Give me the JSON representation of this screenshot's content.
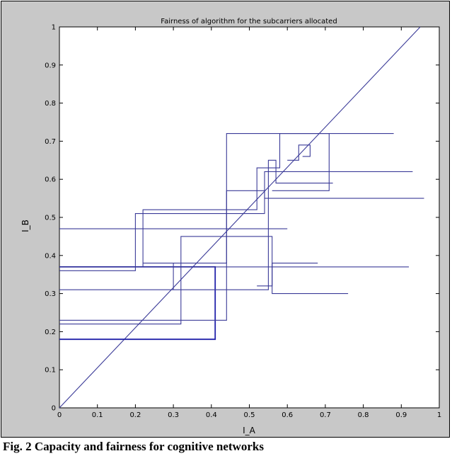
{
  "caption": "Fig. 2 Capacity and fairness for cognitive networks",
  "colors": {
    "line": "#3b3b98",
    "line_bold": "#2222aa",
    "figure_bg": "#c8c8c8",
    "axes_bg": "#ffffff"
  },
  "chart_data": {
    "type": "line",
    "title": "Fairness of algorithm for the subcarriers allocated",
    "xlabel": "I_A",
    "ylabel": "I_B",
    "xlim": [
      0,
      1
    ],
    "ylim": [
      0,
      1
    ],
    "xticks": [
      "0",
      "0.1",
      "0.2",
      "0.3",
      "0.4",
      "0.5",
      "0.6",
      "0.7",
      "0.8",
      "0.9",
      "1"
    ],
    "yticks": [
      "0",
      "0.1",
      "0.2",
      "0.3",
      "0.4",
      "0.5",
      "0.6",
      "0.7",
      "0.8",
      "0.9",
      "1"
    ],
    "grid": false,
    "series": [
      {
        "points": [
          [
            0,
            0
          ],
          [
            0.95,
            1.0
          ]
        ]
      },
      {
        "points": [
          [
            0,
            0.18
          ],
          [
            0.41,
            0.18
          ],
          [
            0.41,
            0.37
          ],
          [
            0,
            0.37
          ]
        ]
      },
      {
        "points": [
          [
            0,
            0.22
          ],
          [
            0.32,
            0.22
          ],
          [
            0.32,
            0.45
          ],
          [
            0.56,
            0.45
          ],
          [
            0.56,
            0.3
          ],
          [
            0.76,
            0.3
          ]
        ]
      },
      {
        "points": [
          [
            0,
            0.23
          ],
          [
            0.44,
            0.23
          ],
          [
            0.44,
            0.57
          ],
          [
            0.54,
            0.57
          ],
          [
            0.54,
            0.55
          ],
          [
            0.96,
            0.55
          ]
        ]
      },
      {
        "points": [
          [
            0,
            0.31
          ],
          [
            0.55,
            0.31
          ],
          [
            0.55,
            0.65
          ],
          [
            0.57,
            0.65
          ],
          [
            0.57,
            0.59
          ],
          [
            0.72,
            0.59
          ]
        ]
      },
      {
        "points": [
          [
            0,
            0.36
          ],
          [
            0.2,
            0.36
          ],
          [
            0.2,
            0.51
          ],
          [
            0.54,
            0.51
          ],
          [
            0.54,
            0.62
          ],
          [
            0.93,
            0.62
          ]
        ]
      },
      {
        "points": [
          [
            0,
            0.37
          ],
          [
            0.92,
            0.37
          ]
        ]
      },
      {
        "points": [
          [
            0,
            0.37
          ],
          [
            0.22,
            0.37
          ],
          [
            0.22,
            0.52
          ],
          [
            0.52,
            0.52
          ],
          [
            0.52,
            0.63
          ],
          [
            0.58,
            0.63
          ],
          [
            0.58,
            0.72
          ],
          [
            0.71,
            0.72
          ],
          [
            0.71,
            0.57
          ],
          [
            0.56,
            0.57
          ]
        ]
      },
      {
        "points": [
          [
            0,
            0.47
          ],
          [
            0.6,
            0.47
          ]
        ]
      },
      {
        "points": [
          [
            0.22,
            0.38
          ],
          [
            0.44,
            0.38
          ],
          [
            0.44,
            0.72
          ],
          [
            0.88,
            0.72
          ]
        ]
      },
      {
        "points": [
          [
            0.3,
            0.38
          ],
          [
            0.3,
            0.31
          ]
        ]
      },
      {
        "points": [
          [
            0.6,
            0.65
          ],
          [
            0.63,
            0.65
          ],
          [
            0.63,
            0.69
          ],
          [
            0.66,
            0.69
          ],
          [
            0.66,
            0.66
          ],
          [
            0.64,
            0.66
          ]
        ]
      },
      {
        "points": [
          [
            0.52,
            0.32
          ],
          [
            0.56,
            0.32
          ],
          [
            0.56,
            0.38
          ],
          [
            0.68,
            0.38
          ]
        ]
      }
    ]
  }
}
